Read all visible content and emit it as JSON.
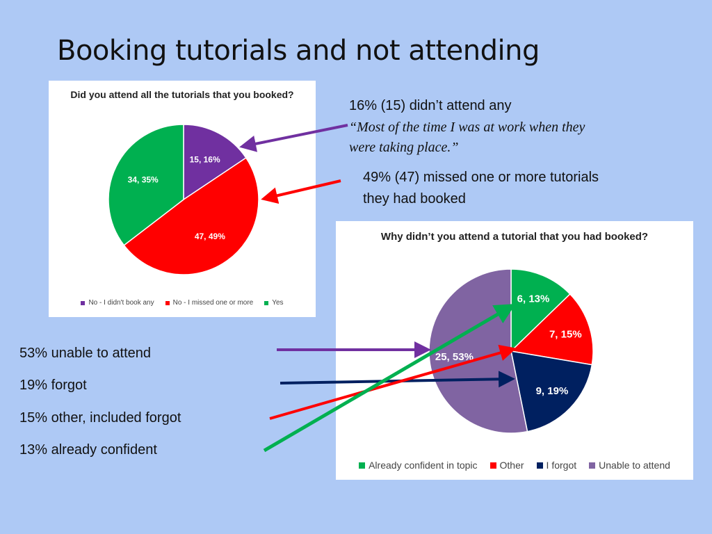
{
  "slide": {
    "title": "Booking tutorials and not attending",
    "notes": {
      "n1": "16% (15) didn’t attend any",
      "quote_line1": "“Most of the time I was at work when they",
      "quote_line2": "were taking place.”",
      "n2_line1": "49% (47) missed one or more tutorials",
      "n2_line2": "they had booked"
    },
    "list": [
      "53% unable to attend",
      "19% forgot",
      "15% other, included forgot",
      "13% already confident"
    ],
    "arrow_colors": [
      "#7030a0",
      "#002060",
      "#ff0000",
      "#00b050"
    ]
  },
  "chart_data": [
    {
      "type": "pie",
      "title": "Did you attend all the tutorials that you booked?",
      "categories": [
        "No - I didn't book any",
        "No - I missed one or more",
        "Yes"
      ],
      "values": [
        15,
        47,
        34
      ],
      "data_labels": [
        "15, 16%",
        "47, 49%",
        "34, 35%"
      ],
      "colors": [
        "#7030a0",
        "#ff0000",
        "#00b050"
      ],
      "legend": "bottom"
    },
    {
      "type": "pie",
      "title": "Why didn’t you attend a tutorial that you had booked?",
      "categories": [
        "Already confident in topic",
        "Other",
        "I forgot",
        "Unable to attend"
      ],
      "values": [
        6,
        7,
        9,
        25
      ],
      "data_labels": [
        "6, 13%",
        "7, 15%",
        "9, 19%",
        "25, 53%"
      ],
      "colors": [
        "#00b050",
        "#ff0000",
        "#002060",
        "#8064a2"
      ],
      "legend": "bottom"
    }
  ]
}
